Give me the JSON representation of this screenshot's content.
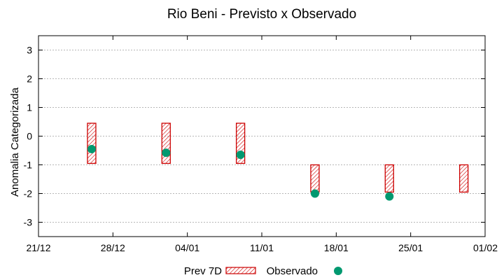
{
  "chart_data": {
    "type": "range-bar-scatter",
    "title": "Rio Beni - Previsto x Observado",
    "xlabel": "",
    "ylabel": "Anomalia Categorizada",
    "ylim": [
      -3.5,
      3.5
    ],
    "yticks": [
      3,
      2,
      1,
      0,
      -1,
      -2,
      -3
    ],
    "ytick_labels": [
      "3",
      "2",
      "1",
      "0",
      "-1",
      "-2",
      "-3"
    ],
    "xlim_days": [
      0,
      42
    ],
    "xticks_days": [
      0,
      7,
      14,
      21,
      28,
      35,
      42
    ],
    "xtick_labels": [
      "21/12",
      "28/12",
      "04/01",
      "11/01",
      "18/01",
      "25/01",
      "01/02"
    ],
    "grid": true,
    "legend_position": "bottom",
    "series": [
      {
        "name": "Prev 7D",
        "kind": "range",
        "color": "#cc0000",
        "x_days": [
          5,
          12,
          19,
          26,
          33,
          40
        ],
        "low": [
          -0.95,
          -0.95,
          -0.95,
          -1.95,
          -1.95,
          -1.95
        ],
        "high": [
          0.45,
          0.45,
          0.45,
          -1.0,
          -1.0,
          -1.0
        ]
      },
      {
        "name": "Observado",
        "kind": "points",
        "color": "#009970",
        "x_days": [
          5,
          12,
          19,
          26,
          33
        ],
        "values": [
          -0.45,
          -0.58,
          -0.65,
          -2.0,
          -2.1
        ]
      }
    ]
  },
  "legend": {
    "prev_label": "Prev 7D",
    "obs_label": "Observado"
  }
}
